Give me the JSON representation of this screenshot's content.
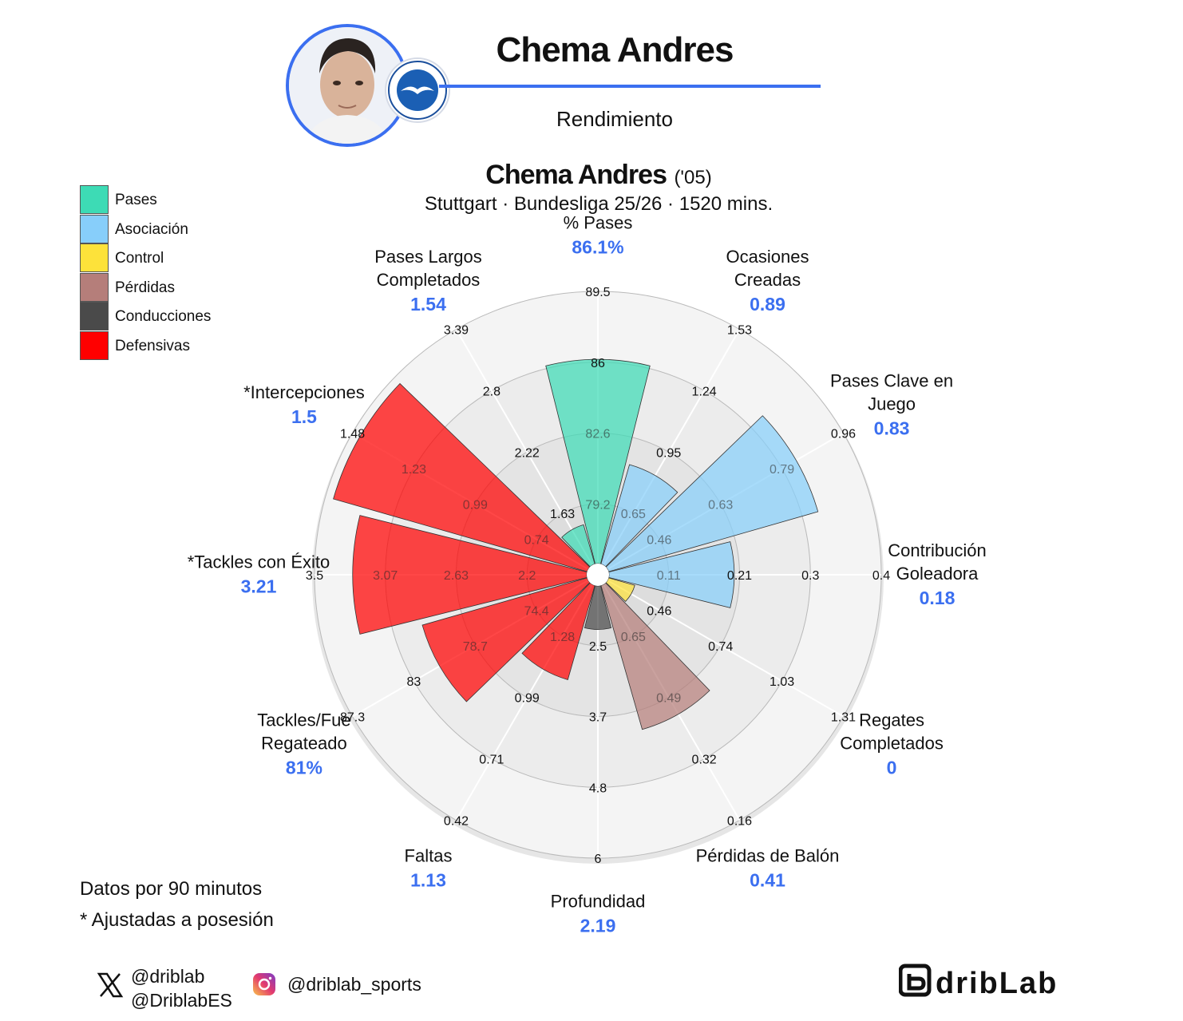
{
  "header": {
    "player_name": "Chema Andres",
    "subtitle": "Rendimiento"
  },
  "chart_title": {
    "name": "Chema Andres",
    "age": "('05)",
    "subtitle": "Stuttgart · Bundesliga 25/26 · 1520 mins."
  },
  "legend": [
    {
      "label": "Pases",
      "color": "#3ddbb5"
    },
    {
      "label": "Asociación",
      "color": "#87cefa"
    },
    {
      "label": "Control",
      "color": "#fde23a"
    },
    {
      "label": "Pérdidas",
      "color": "#b57e7a"
    },
    {
      "label": "Conducciones",
      "color": "#4a4a4a"
    },
    {
      "label": "Defensivas",
      "color": "#ff0000"
    }
  ],
  "chart_data": {
    "type": "polar-bar",
    "metrics": [
      {
        "name": "% Pases",
        "value": "86.1%",
        "fraction": 0.75,
        "category": "Pases",
        "ticks": [
          "79.2",
          "82.6",
          "86",
          "89.5"
        ]
      },
      {
        "name": "Ocasiones Creadas",
        "value": "0.89",
        "fraction": 0.38,
        "category": "Asociación",
        "ticks": [
          "0.65",
          "0.95",
          "1.24",
          "1.53"
        ]
      },
      {
        "name": "Pases Clave en Juego",
        "value": "0.83",
        "fraction": 0.8,
        "category": "Asociación",
        "ticks": [
          "0.46",
          "0.63",
          "0.79",
          "0.96"
        ]
      },
      {
        "name": "Contribución Goleadora",
        "value": "0.18",
        "fraction": 0.46,
        "category": "Asociación",
        "ticks": [
          "0.11",
          "0.21",
          "0.3",
          "0.4"
        ]
      },
      {
        "name": "Regates Completados",
        "value": "0",
        "fraction": 0.1,
        "category": "Control",
        "ticks": [
          "0.46",
          "0.74",
          "1.03",
          "1.31"
        ]
      },
      {
        "name": "Pérdidas de Balón",
        "value": "0.41",
        "fraction": 0.55,
        "category": "Pérdidas",
        "ticks": [
          "0.65",
          "0.49",
          "0.32",
          "0.16"
        ]
      },
      {
        "name": "Profundidad",
        "value": "2.19",
        "fraction": 0.16,
        "category": "Conducciones",
        "ticks": [
          "2.5",
          "3.7",
          "4.8",
          "6"
        ]
      },
      {
        "name": "Faltas",
        "value": "1.13",
        "fraction": 0.36,
        "category": "Defensivas",
        "ticks": [
          "1.28",
          "0.99",
          "0.71",
          "0.42"
        ]
      },
      {
        "name": "Tackles/Fue Regateado",
        "value": "81%",
        "fraction": 0.63,
        "category": "Defensivas",
        "ticks": [
          "74.4",
          "78.7",
          "83",
          "87.3"
        ]
      },
      {
        "name": "*Tackles con Éxito",
        "value": "3.21",
        "fraction": 0.86,
        "category": "Defensivas",
        "ticks": [
          "2.2",
          "2.63",
          "3.07",
          "3.5"
        ]
      },
      {
        "name": "*Intercepciones",
        "value": "1.5",
        "fraction": 0.97,
        "category": "Defensivas",
        "ticks": [
          "0.74",
          "0.99",
          "1.23",
          "1.48"
        ]
      },
      {
        "name": "Pases Largos Completados",
        "value": "1.54",
        "fraction": 0.15,
        "category": "Pases",
        "ticks": [
          "1.63",
          "2.22",
          "2.8",
          "3.39"
        ]
      }
    ],
    "label_lines": [
      [
        "% Pases"
      ],
      [
        "Ocasiones",
        "Creadas"
      ],
      [
        "Pases Clave en",
        "Juego"
      ],
      [
        "Contribución",
        "Goleadora"
      ],
      [
        "Regates",
        "Completados"
      ],
      [
        "Pérdidas de Balón"
      ],
      [
        "Profundidad"
      ],
      [
        "Faltas"
      ],
      [
        "Tackles/Fue",
        "Regateado"
      ],
      [
        "*Tackles con Éxito"
      ],
      [
        "*Intercepciones"
      ],
      [
        "Pases Largos",
        "Completados"
      ]
    ],
    "value_color": "#3b6ff0"
  },
  "notes": {
    "line1": "Datos por 90 minutos",
    "line2": "* Ajustadas a posesión"
  },
  "social": {
    "x_handle1": "@driblab",
    "x_handle2": "@DriblabES",
    "instagram": "@driblab_sports"
  },
  "brand": {
    "logo_text": "dribLab"
  }
}
